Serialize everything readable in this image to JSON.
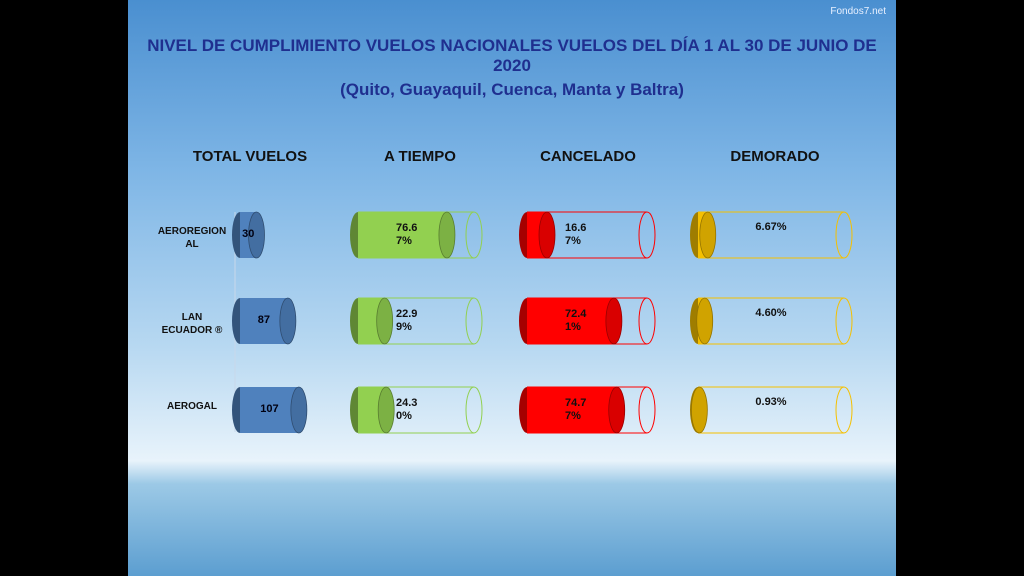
{
  "watermark": "Fondos7.net",
  "title": "NIVEL DE CUMPLIMIENTO VUELOS NACIONALES  VUELOS DEL DÍA 1 AL 30 DE JUNIO DE 2020",
  "subtitle": "(Quito, Guayaquil, Cuenca, Manta  y  Baltra)",
  "chart_data": [
    {
      "type": "bar",
      "title": "TOTAL VUELOS",
      "categories": [
        "AEROREGIONAL",
        "LAN ECUADOR ®",
        "AEROGAL"
      ],
      "values": [
        30,
        87,
        107
      ],
      "color": "#4f81bd",
      "xlim": [
        0,
        200
      ]
    },
    {
      "type": "bar",
      "title": "A TIEMPO",
      "values": [
        76.67,
        22.99,
        24.3
      ],
      "value_labels": [
        "76.67%",
        "22.99%",
        "24.30%"
      ],
      "color": "#92d050",
      "xlim": [
        0,
        100
      ]
    },
    {
      "type": "bar",
      "title": "CANCELADO",
      "values": [
        16.67,
        72.41,
        74.77
      ],
      "value_labels": [
        "16.67%",
        "72.41%",
        "74.77%"
      ],
      "color": "#ff0000",
      "xlim": [
        0,
        100
      ]
    },
    {
      "type": "bar",
      "title": "DEMORADO",
      "values": [
        6.67,
        4.6,
        0.93
      ],
      "value_labels": [
        "6.67%",
        "4.60%",
        "0.93%"
      ],
      "color": "#f5c000",
      "xlim": [
        0,
        100
      ]
    }
  ]
}
